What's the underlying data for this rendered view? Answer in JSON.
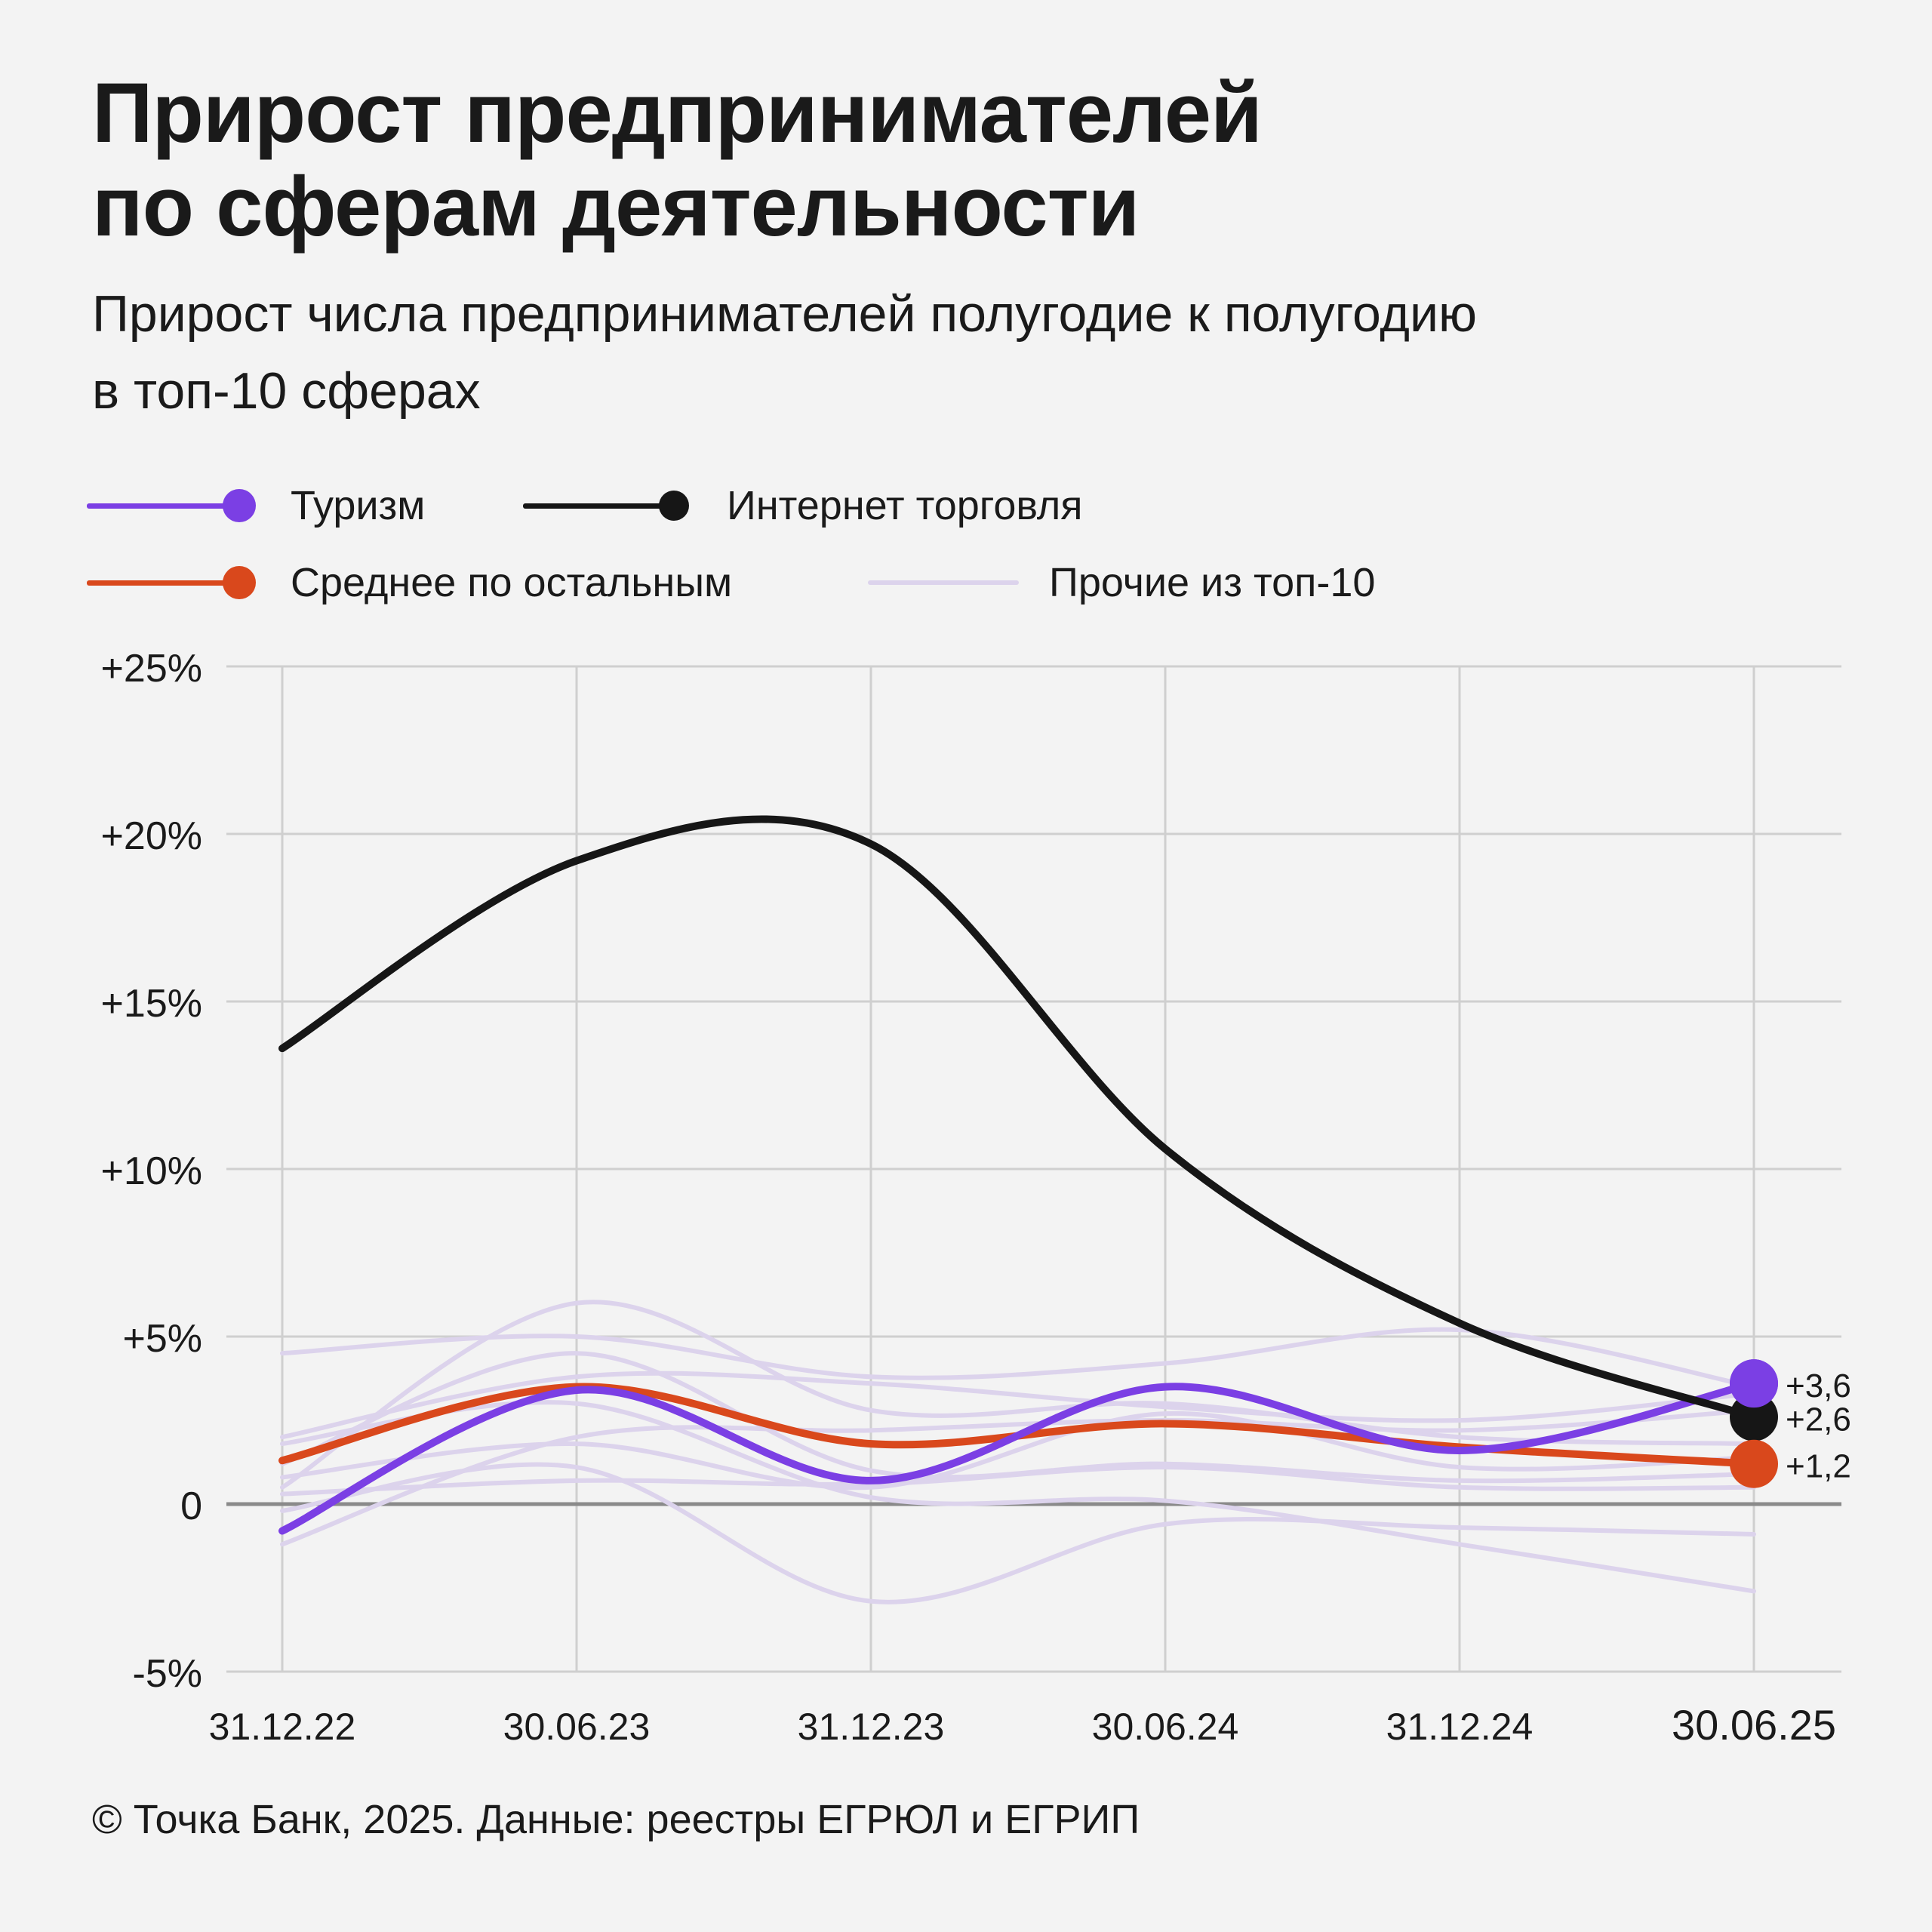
{
  "header": {
    "title_line1": "Прирост предпринимателей",
    "title_line2": "по сферам деятельности",
    "subtitle_line1": "Прирост числа предпринимателей полугодие к полугодию",
    "subtitle_line2": "в топ-10 сферах"
  },
  "legend": [
    {
      "label": "Туризм",
      "color": "#7b3fe4"
    },
    {
      "label": "Интернет торговля",
      "color": "#161616"
    },
    {
      "label": "Среднее по остальным",
      "color": "#d9481c"
    },
    {
      "label": "Прочие из топ-10",
      "color": "#dcd3ec"
    }
  ],
  "footer": {
    "source": "© Точка Банк, 2025. Данные: реестры ЕГРЮЛ и ЕГРИП"
  },
  "chart_data": {
    "type": "line",
    "x": [
      "31.12.22",
      "30.06.23",
      "31.12.23",
      "30.06.24",
      "31.12.24",
      "30.06.25"
    ],
    "ylim": [
      -5,
      25
    ],
    "yticks": [
      -5,
      0,
      5,
      10,
      15,
      20,
      25
    ],
    "ytick_labels": [
      "-5%",
      "0",
      "+5%",
      "+10%",
      "+15%",
      "+20%",
      "+25%"
    ],
    "grid": true,
    "legend_position": "top-left",
    "series": [
      {
        "name": "Туризм",
        "color": "#7b3fe4",
        "values": [
          -0.8,
          3.4,
          0.7,
          3.5,
          1.6,
          3.6
        ],
        "end_label": "+3,6"
      },
      {
        "name": "Интернет торговля",
        "color": "#161616",
        "values": [
          13.6,
          19.2,
          19.7,
          10.6,
          5.4,
          2.6
        ],
        "end_label": "+2,6"
      },
      {
        "name": "Среднее по остальным",
        "color": "#d9481c",
        "values": [
          1.3,
          3.5,
          1.8,
          2.4,
          1.7,
          1.2
        ],
        "end_label": "+1,2"
      }
    ],
    "other_series": [
      [
        4.5,
        5.0,
        3.8,
        4.2,
        5.2,
        3.5
      ],
      [
        2.0,
        3.8,
        3.6,
        2.9,
        2.5,
        3.3
      ],
      [
        0.5,
        6.0,
        2.8,
        3.0,
        2.0,
        1.8
      ],
      [
        -1.2,
        2.0,
        2.2,
        2.5,
        2.2,
        2.8
      ],
      [
        0.8,
        1.8,
        0.5,
        2.7,
        1.1,
        1.4
      ],
      [
        1.2,
        4.5,
        1.0,
        1.2,
        0.7,
        0.9
      ],
      [
        0.3,
        0.7,
        0.6,
        1.1,
        0.5,
        0.5
      ],
      [
        -0.2,
        1.1,
        -2.9,
        -0.6,
        -0.7,
        -0.9
      ],
      [
        1.8,
        3.0,
        0.2,
        0.1,
        -1.2,
        -2.6
      ]
    ]
  }
}
